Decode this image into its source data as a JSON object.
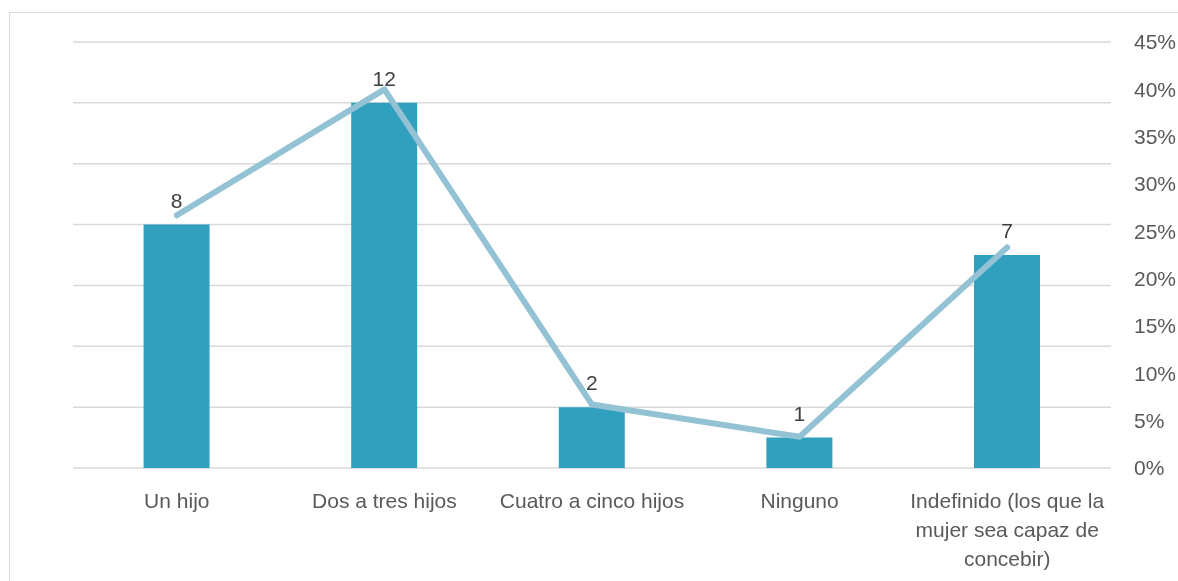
{
  "chart_data": {
    "type": "bar",
    "categories": [
      "Un hijo",
      "Dos a tres hijos",
      "Cuatro a cinco hijos",
      "Ninguno",
      "Indefinido (los que la mujer sea capaz de concebir)"
    ],
    "series": [
      {
        "color": "#31a0bf",
        "values": [
          8,
          12,
          2,
          1,
          7
        ],
        "value_labels": [
          "8",
          "12",
          "2",
          "1",
          "7"
        ]
      },
      {
        "type": "line",
        "axis": "y2",
        "color": "#92c2d4",
        "values": [
          26.7,
          40,
          6.7,
          3.3,
          23.3
        ],
        "marker": "none",
        "line_style": "solid"
      }
    ],
    "ylim": [
      0,
      14
    ],
    "yticks": [
      {
        "value": 0,
        "label": null
      },
      {
        "value": 2,
        "label": null
      },
      {
        "value": 4,
        "label": null
      },
      {
        "value": 6,
        "label": null
      },
      {
        "value": 8,
        "label": null
      },
      {
        "value": 10,
        "label": null
      },
      {
        "value": 12,
        "label": null
      },
      {
        "value": 14,
        "label": null
      }
    ],
    "y2lim": [
      0,
      45
    ],
    "y2ticks": [
      {
        "value": 0,
        "label": "0%"
      },
      {
        "value": 5,
        "label": "5%"
      },
      {
        "value": 10,
        "label": "10%"
      },
      {
        "value": 15,
        "label": "15%"
      },
      {
        "value": 20,
        "label": "20%"
      },
      {
        "value": 25,
        "label": "25%"
      },
      {
        "value": 30,
        "label": "30%"
      },
      {
        "value": 35,
        "label": "35%"
      },
      {
        "value": 40,
        "label": "40%"
      },
      {
        "value": 45,
        "label": "45%"
      }
    ],
    "grid": "y"
  }
}
